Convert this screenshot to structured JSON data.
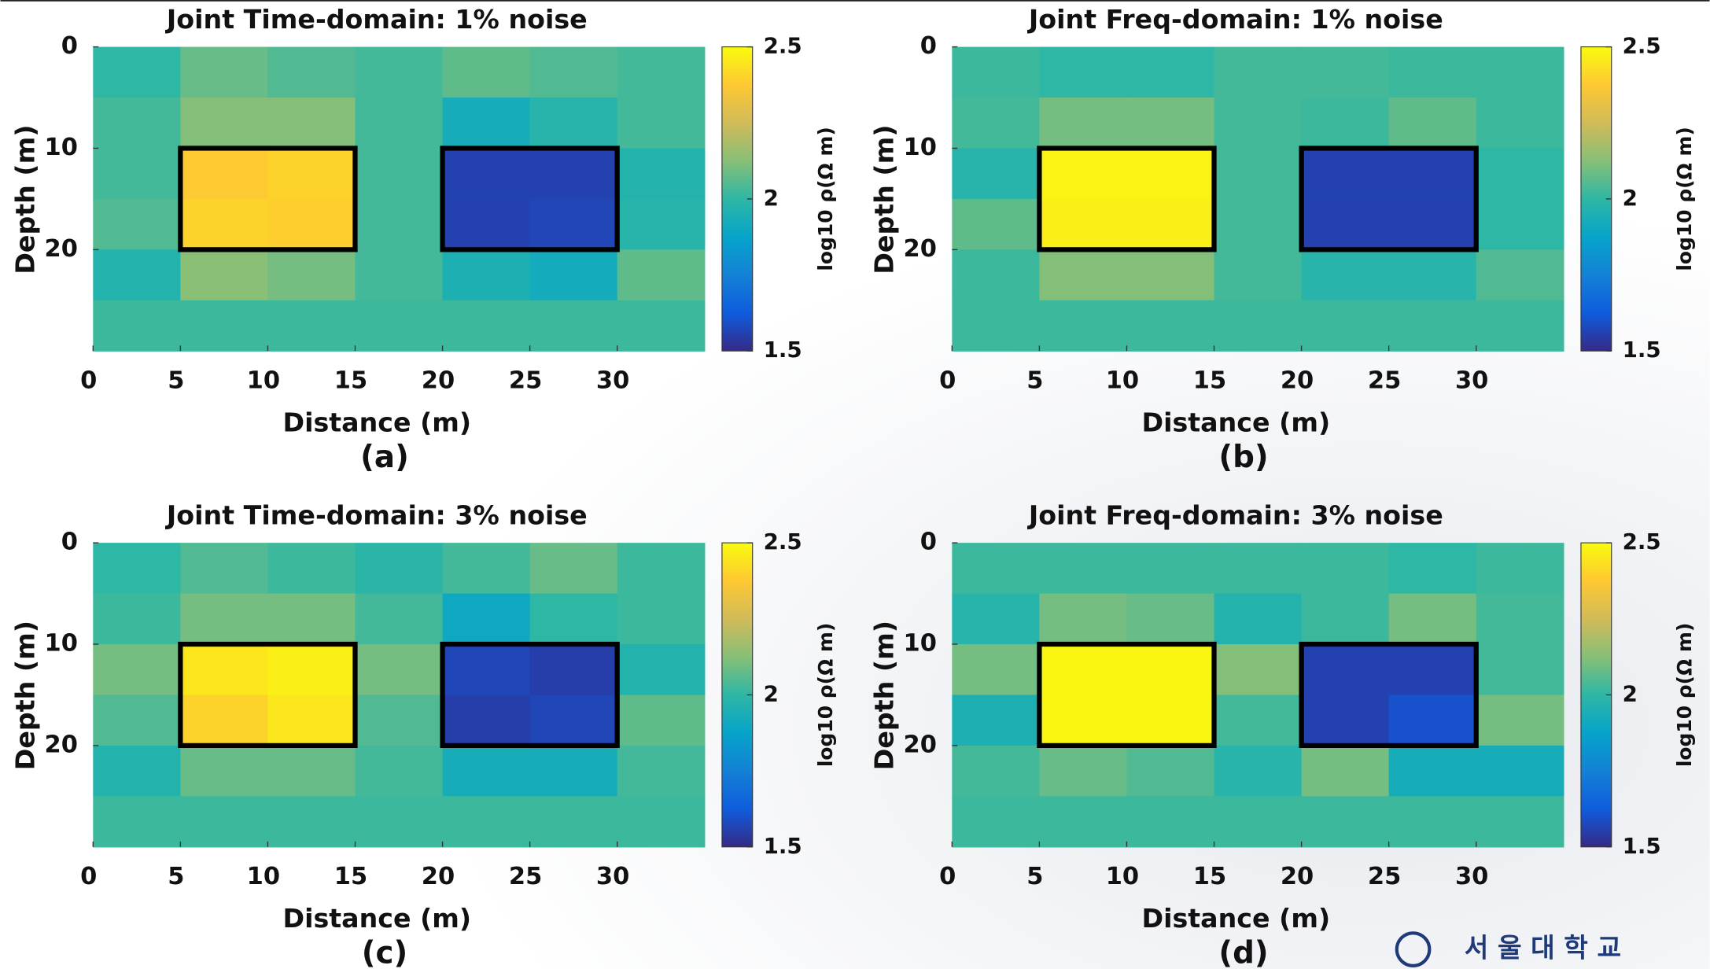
{
  "chart_data": [
    {
      "type": "heatmap",
      "title": "Joint Time-domain: 1% noise",
      "panel_label": "(a)",
      "x_label": "Distance (m)",
      "y_label": "Depth (m)",
      "x_edges": [
        0,
        5,
        10,
        15,
        20,
        25,
        30,
        35
      ],
      "y_edges": [
        0,
        5,
        10,
        15,
        20,
        25,
        30
      ],
      "values": [
        [
          2.0,
          2.08,
          2.05,
          2.03,
          2.07,
          2.05,
          2.03
        ],
        [
          2.03,
          2.12,
          2.12,
          2.03,
          1.93,
          1.98,
          2.03
        ],
        [
          2.03,
          2.38,
          2.4,
          2.03,
          1.56,
          1.56,
          1.97
        ],
        [
          2.05,
          2.4,
          2.39,
          2.03,
          1.56,
          1.57,
          1.98
        ],
        [
          1.97,
          2.13,
          2.1,
          2.03,
          1.95,
          1.92,
          2.07
        ],
        [
          2.02,
          2.02,
          2.02,
          2.02,
          2.02,
          2.02,
          2.02
        ]
      ],
      "xlim": [
        0,
        35
      ],
      "ylim": [
        0,
        30
      ],
      "y_reversed": true,
      "xticks": [
        0,
        5,
        10,
        15,
        20,
        25,
        30
      ],
      "yticks": [
        0,
        10,
        20
      ],
      "clim": [
        1.5,
        2.5
      ],
      "cticks": [
        1.5,
        2,
        2.5
      ],
      "colorbar_label": "log10 ρ(Ω m)",
      "colormap": [
        "#352a87",
        "#0f5cdd",
        "#1481d6",
        "#06a4ca",
        "#2eb7a4",
        "#87bf77",
        "#d1bb59",
        "#fec832",
        "#f9fb0e"
      ],
      "outlines": [
        {
          "x": [
            5,
            15
          ],
          "y": [
            10,
            20
          ]
        },
        {
          "x": [
            20,
            30
          ],
          "y": [
            10,
            20
          ]
        }
      ]
    },
    {
      "type": "heatmap",
      "title": "Joint Freq-domain: 1% noise",
      "panel_label": "(b)",
      "x_label": "Distance (m)",
      "y_label": "Depth (m)",
      "x_edges": [
        0,
        5,
        10,
        15,
        20,
        25,
        30,
        35
      ],
      "y_edges": [
        0,
        5,
        10,
        15,
        20,
        25,
        30
      ],
      "values": [
        [
          2.02,
          2.0,
          2.0,
          2.03,
          2.03,
          2.02,
          2.02
        ],
        [
          2.03,
          2.1,
          2.1,
          2.03,
          2.02,
          2.07,
          2.02
        ],
        [
          1.98,
          2.48,
          2.48,
          2.03,
          1.56,
          1.56,
          2.0
        ],
        [
          2.07,
          2.47,
          2.47,
          2.03,
          1.56,
          1.56,
          2.0
        ],
        [
          2.02,
          2.12,
          2.12,
          2.03,
          1.98,
          1.98,
          2.05
        ],
        [
          2.02,
          2.02,
          2.02,
          2.02,
          2.02,
          2.02,
          2.02
        ]
      ],
      "xlim": [
        0,
        35
      ],
      "ylim": [
        0,
        30
      ],
      "y_reversed": true,
      "xticks": [
        0,
        5,
        10,
        15,
        20,
        25,
        30
      ],
      "yticks": [
        0,
        10,
        20
      ],
      "clim": [
        1.5,
        2.5
      ],
      "cticks": [
        1.5,
        2,
        2.5
      ],
      "colorbar_label": "log10 ρ(Ω m)",
      "colormap": [
        "#352a87",
        "#0f5cdd",
        "#1481d6",
        "#06a4ca",
        "#2eb7a4",
        "#87bf77",
        "#d1bb59",
        "#fec832",
        "#f9fb0e"
      ],
      "outlines": [
        {
          "x": [
            5,
            15
          ],
          "y": [
            10,
            20
          ]
        },
        {
          "x": [
            20,
            30
          ],
          "y": [
            10,
            20
          ]
        }
      ]
    },
    {
      "type": "heatmap",
      "title": "Joint Time-domain: 3% noise",
      "panel_label": "(c)",
      "x_label": "Distance (m)",
      "y_label": "Depth (m)",
      "x_edges": [
        0,
        5,
        10,
        15,
        20,
        25,
        30,
        35
      ],
      "y_edges": [
        0,
        5,
        10,
        15,
        20,
        25,
        30
      ],
      "values": [
        [
          2.0,
          2.05,
          2.02,
          1.99,
          2.03,
          2.08,
          2.02
        ],
        [
          2.02,
          2.1,
          2.1,
          2.03,
          1.9,
          2.0,
          2.02
        ],
        [
          2.1,
          2.45,
          2.47,
          2.1,
          1.57,
          1.55,
          1.97
        ],
        [
          2.05,
          2.4,
          2.45,
          2.05,
          1.55,
          1.57,
          2.07
        ],
        [
          1.97,
          2.08,
          2.08,
          2.03,
          1.93,
          1.93,
          2.03
        ],
        [
          2.02,
          2.02,
          2.02,
          2.02,
          2.02,
          2.02,
          2.02
        ]
      ],
      "xlim": [
        0,
        35
      ],
      "ylim": [
        0,
        30
      ],
      "y_reversed": true,
      "xticks": [
        0,
        5,
        10,
        15,
        20,
        25,
        30
      ],
      "yticks": [
        0,
        10,
        20
      ],
      "clim": [
        1.5,
        2.5
      ],
      "cticks": [
        1.5,
        2,
        2.5
      ],
      "colorbar_label": "log10 ρ(Ω m)",
      "colormap": [
        "#352a87",
        "#0f5cdd",
        "#1481d6",
        "#06a4ca",
        "#2eb7a4",
        "#87bf77",
        "#d1bb59",
        "#fec832",
        "#f9fb0e"
      ],
      "outlines": [
        {
          "x": [
            5,
            15
          ],
          "y": [
            10,
            20
          ]
        },
        {
          "x": [
            20,
            30
          ],
          "y": [
            10,
            20
          ]
        }
      ]
    },
    {
      "type": "heatmap",
      "title": "Joint Freq-domain: 3% noise",
      "panel_label": "(d)",
      "x_label": "Distance (m)",
      "y_label": "Depth (m)",
      "x_edges": [
        0,
        5,
        10,
        15,
        20,
        25,
        30,
        35
      ],
      "y_edges": [
        0,
        5,
        10,
        15,
        20,
        25,
        30
      ],
      "values": [
        [
          2.02,
          2.02,
          2.02,
          2.02,
          2.02,
          2.0,
          2.02
        ],
        [
          1.98,
          2.1,
          2.08,
          1.97,
          2.02,
          2.1,
          2.03
        ],
        [
          2.1,
          2.49,
          2.49,
          2.12,
          1.56,
          1.56,
          2.03
        ],
        [
          1.95,
          2.49,
          2.49,
          2.03,
          1.56,
          1.6,
          2.1
        ],
        [
          2.03,
          2.08,
          2.05,
          1.98,
          2.1,
          1.93,
          1.93
        ],
        [
          2.02,
          2.02,
          2.02,
          2.02,
          2.02,
          2.02,
          2.02
        ]
      ],
      "xlim": [
        0,
        35
      ],
      "ylim": [
        0,
        30
      ],
      "y_reversed": true,
      "xticks": [
        0,
        5,
        10,
        15,
        20,
        25,
        30
      ],
      "yticks": [
        0,
        10,
        20
      ],
      "clim": [
        1.5,
        2.5
      ],
      "cticks": [
        1.5,
        2,
        2.5
      ],
      "colorbar_label": "log10 ρ(Ω m)",
      "colormap": [
        "#352a87",
        "#0f5cdd",
        "#1481d6",
        "#06a4ca",
        "#2eb7a4",
        "#87bf77",
        "#d1bb59",
        "#fec832",
        "#f9fb0e"
      ],
      "outlines": [
        {
          "x": [
            5,
            15
          ],
          "y": [
            10,
            20
          ]
        },
        {
          "x": [
            20,
            30
          ],
          "y": [
            10,
            20
          ]
        }
      ]
    }
  ],
  "logo_text": "서 울 대 학 교"
}
